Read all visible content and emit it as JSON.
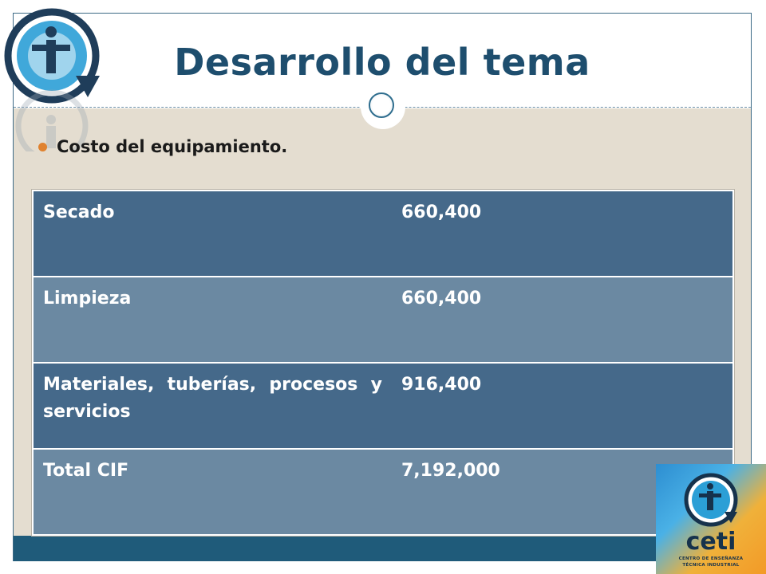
{
  "slide": {
    "title": "Desarrollo del tema",
    "bullet": "Costo del equipamiento."
  },
  "table": {
    "rows": [
      {
        "label": "Secado",
        "value": "660,400"
      },
      {
        "label": "Limpieza",
        "value": "660,400"
      },
      {
        "label": "Materiales, tuberías, procesos y servicios",
        "value": "916,400"
      },
      {
        "label": "Total CIF",
        "value": "7,192,000"
      }
    ]
  },
  "logo": {
    "name": "ceti",
    "line1": "CENTRO DE ENSEÑANZA",
    "line2": "TÉCNICA INDUSTRIAL"
  },
  "colors": {
    "title": "#1e4e6e",
    "accent_bullet": "#e0822f",
    "row_dark": "#45698a",
    "row_light": "#6b89a2",
    "footer_bar": "#1f5b7a",
    "content_bg": "#e4ddd0"
  }
}
